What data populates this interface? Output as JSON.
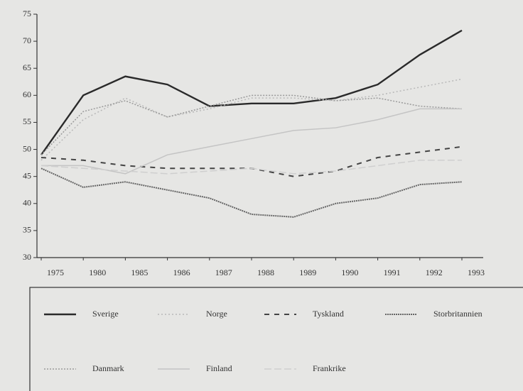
{
  "chart_data": {
    "type": "line",
    "categories": [
      "1975",
      "1980",
      "1985",
      "1986",
      "1987",
      "1988",
      "1989",
      "1990",
      "1991",
      "1992",
      "1993"
    ],
    "ylim": [
      30,
      75
    ],
    "yticks": [
      30,
      35,
      40,
      45,
      50,
      55,
      60,
      65,
      70,
      75
    ],
    "legend": "bottom",
    "series": [
      {
        "name": "Sverige",
        "color": "#2a2a2a",
        "dash": "none",
        "width": 2.4,
        "values": [
          49,
          60,
          63.5,
          62,
          58,
          58.5,
          58.5,
          59.5,
          62,
          67.5,
          72
        ]
      },
      {
        "name": "Norge",
        "color": "#b8b8b8",
        "dash": "2 3",
        "width": 1.5,
        "values": [
          48,
          55.5,
          59.5,
          56,
          57.5,
          59.5,
          59.5,
          59,
          60,
          61.5,
          63
        ]
      },
      {
        "name": "Tyskland",
        "color": "#444444",
        "dash": "7 7",
        "width": 2,
        "values": [
          48.5,
          48,
          47,
          46.5,
          46.5,
          46.5,
          45,
          46,
          48.5,
          49.5,
          50.5
        ]
      },
      {
        "name": "Storbritannien",
        "color": "#666666",
        "dash": "2 1",
        "width": 2,
        "values": [
          46.5,
          43,
          44,
          42.5,
          41,
          38,
          37.5,
          40,
          41,
          43.5,
          44
        ]
      },
      {
        "name": "Danmark",
        "color": "#9a9a9a",
        "dash": "2 2",
        "width": 1.5,
        "values": [
          49,
          57,
          59,
          56,
          58,
          60,
          60,
          59,
          59.5,
          58,
          57.5
        ]
      },
      {
        "name": "Finland",
        "color": "#c4c4c4",
        "dash": "none",
        "width": 1.5,
        "values": [
          47,
          47,
          45.5,
          49,
          50.5,
          52,
          53.5,
          54,
          55.5,
          57.5,
          57.5
        ]
      },
      {
        "name": "Frankrike",
        "color": "#cfcfcf",
        "dash": "10 4",
        "width": 1.5,
        "values": [
          47,
          46.5,
          46,
          45.5,
          46,
          46.5,
          45.5,
          46,
          47,
          48,
          48
        ]
      }
    ]
  }
}
